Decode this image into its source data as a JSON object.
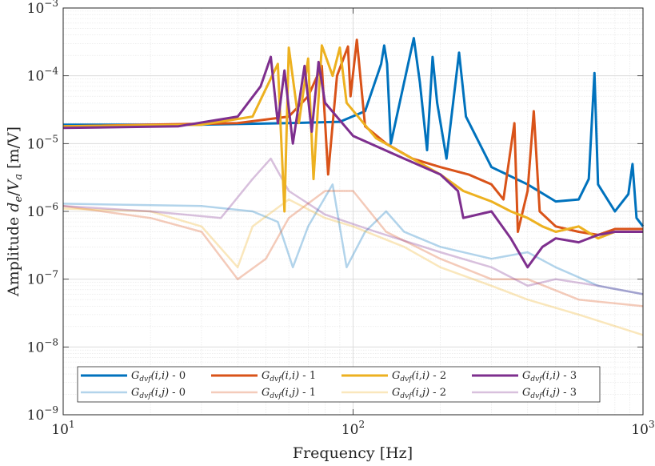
{
  "chart_data": {
    "type": "line",
    "xlabel": "Frequency [Hz]",
    "ylabel": "Amplitude d_e/V_a [m/V]",
    "xscale": "log",
    "yscale": "log",
    "xlim": [
      10,
      1000
    ],
    "ylim": [
      1e-09,
      0.001
    ],
    "grid": true,
    "legend_placement": "bottom-center",
    "x_ticks": [
      {
        "value": 10,
        "base": "10",
        "exp": "1"
      },
      {
        "value": 100,
        "base": "10",
        "exp": "2"
      },
      {
        "value": 1000,
        "base": "10",
        "exp": "3"
      }
    ],
    "y_ticks": [
      {
        "value": 1e-09,
        "base": "10",
        "exp": "−9"
      },
      {
        "value": 1e-08,
        "base": "10",
        "exp": "−8"
      },
      {
        "value": 1e-07,
        "base": "10",
        "exp": "−7"
      },
      {
        "value": 1e-06,
        "base": "10",
        "exp": "−6"
      },
      {
        "value": 1e-05,
        "base": "10",
        "exp": "−5"
      },
      {
        "value": 0.0001,
        "base": "10",
        "exp": "−4"
      },
      {
        "value": 0.001,
        "base": "10",
        "exp": "−3"
      }
    ],
    "series": [
      {
        "name": "G_dvf(i,i) - 0",
        "kind": "diagonal",
        "color": "#0072BD",
        "points": [
          [
            10,
            1.9e-05
          ],
          [
            30,
            1.9e-05
          ],
          [
            60,
            2e-05
          ],
          [
            90,
            2.1e-05
          ],
          [
            110,
            3e-05
          ],
          [
            125,
            0.00015
          ],
          [
            128,
            0.00028
          ],
          [
            131,
            0.00015
          ],
          [
            135,
            1e-05
          ],
          [
            150,
            8e-05
          ],
          [
            162,
            0.00036
          ],
          [
            170,
            8e-05
          ],
          [
            180,
            8e-06
          ],
          [
            188,
            0.00019
          ],
          [
            195,
            4e-05
          ],
          [
            210,
            6e-06
          ],
          [
            232,
            0.00022
          ],
          [
            245,
            2.5e-05
          ],
          [
            300,
            4.5e-06
          ],
          [
            400,
            2.5e-06
          ],
          [
            500,
            1.4e-06
          ],
          [
            600,
            1.5e-06
          ],
          [
            650,
            3e-06
          ],
          [
            680,
            0.00011
          ],
          [
            700,
            2.5e-06
          ],
          [
            800,
            1e-06
          ],
          [
            890,
            1.8e-06
          ],
          [
            920,
            5e-06
          ],
          [
            950,
            8e-07
          ],
          [
            1000,
            6e-07
          ]
        ]
      },
      {
        "name": "G_dvf(i,i) - 1",
        "kind": "diagonal",
        "color": "#D95319",
        "points": [
          [
            10,
            1.8e-05
          ],
          [
            40,
            2e-05
          ],
          [
            60,
            2.5e-05
          ],
          [
            70,
            5e-05
          ],
          [
            78,
            0.00014
          ],
          [
            82,
            3.5e-06
          ],
          [
            88,
            0.0001
          ],
          [
            96,
            0.00027
          ],
          [
            98,
            5e-05
          ],
          [
            103,
            0.00034
          ],
          [
            110,
            1.8e-05
          ],
          [
            130,
            1e-05
          ],
          [
            160,
            6e-06
          ],
          [
            200,
            4.5e-06
          ],
          [
            250,
            3.5e-06
          ],
          [
            300,
            2.5e-06
          ],
          [
            330,
            1.5e-06
          ],
          [
            360,
            2e-05
          ],
          [
            370,
            5e-07
          ],
          [
            400,
            2e-06
          ],
          [
            420,
            3e-05
          ],
          [
            440,
            1e-06
          ],
          [
            500,
            6e-07
          ],
          [
            600,
            5e-07
          ],
          [
            700,
            4.5e-07
          ],
          [
            800,
            5.5e-07
          ],
          [
            1000,
            5.5e-07
          ]
        ]
      },
      {
        "name": "G_dvf(i,i) - 2",
        "kind": "diagonal",
        "color": "#EDB120",
        "points": [
          [
            10,
            1.8e-05
          ],
          [
            30,
            1.9e-05
          ],
          [
            45,
            2.5e-05
          ],
          [
            55,
            0.00015
          ],
          [
            58,
            1e-06
          ],
          [
            60,
            0.00026
          ],
          [
            65,
            2e-05
          ],
          [
            70,
            0.00018
          ],
          [
            73,
            3e-06
          ],
          [
            78,
            0.00028
          ],
          [
            85,
            0.0001
          ],
          [
            90,
            0.00026
          ],
          [
            95,
            4e-05
          ],
          [
            120,
            1.2e-05
          ],
          [
            160,
            6e-06
          ],
          [
            200,
            3.5e-06
          ],
          [
            240,
            2e-06
          ],
          [
            300,
            1.4e-06
          ],
          [
            350,
            1e-06
          ],
          [
            400,
            8e-07
          ],
          [
            450,
            6e-07
          ],
          [
            500,
            5e-07
          ],
          [
            600,
            6e-07
          ],
          [
            700,
            4e-07
          ],
          [
            800,
            5e-07
          ],
          [
            1000,
            5e-07
          ]
        ]
      },
      {
        "name": "G_dvf(i,i) - 3",
        "kind": "diagonal",
        "color": "#7E2F8E",
        "points": [
          [
            10,
            1.7e-05
          ],
          [
            25,
            1.8e-05
          ],
          [
            40,
            2.5e-05
          ],
          [
            48,
            7e-05
          ],
          [
            52,
            0.00019
          ],
          [
            55,
            2e-05
          ],
          [
            58,
            0.00012
          ],
          [
            62,
            1e-05
          ],
          [
            68,
            0.00014
          ],
          [
            72,
            1.5e-05
          ],
          [
            76,
            0.00016
          ],
          [
            80,
            4e-05
          ],
          [
            100,
            1.3e-05
          ],
          [
            150,
            6e-06
          ],
          [
            200,
            3.5e-06
          ],
          [
            230,
            2e-06
          ],
          [
            240,
            8e-07
          ],
          [
            300,
            1e-06
          ],
          [
            350,
            4e-07
          ],
          [
            400,
            1.5e-07
          ],
          [
            450,
            3e-07
          ],
          [
            500,
            4e-07
          ],
          [
            600,
            3.5e-07
          ],
          [
            700,
            4.5e-07
          ],
          [
            800,
            5e-07
          ],
          [
            1000,
            5e-07
          ]
        ]
      },
      {
        "name": "G_dvf(i,j) - 0",
        "kind": "coupling",
        "color": "#0072BD",
        "points": [
          [
            10,
            1.3e-06
          ],
          [
            30,
            1.2e-06
          ],
          [
            45,
            1e-06
          ],
          [
            55,
            7e-07
          ],
          [
            62,
            1.5e-07
          ],
          [
            70,
            6e-07
          ],
          [
            85,
            2.5e-06
          ],
          [
            95,
            1.5e-07
          ],
          [
            110,
            5e-07
          ],
          [
            130,
            1e-06
          ],
          [
            150,
            5e-07
          ],
          [
            200,
            3e-07
          ],
          [
            300,
            2e-07
          ],
          [
            400,
            2.5e-07
          ],
          [
            500,
            1.5e-07
          ],
          [
            700,
            8e-08
          ],
          [
            1000,
            6e-08
          ]
        ]
      },
      {
        "name": "G_dvf(i,j) - 1",
        "kind": "coupling",
        "color": "#D95319",
        "points": [
          [
            10,
            1.2e-06
          ],
          [
            20,
            8e-07
          ],
          [
            30,
            5e-07
          ],
          [
            40,
            1e-07
          ],
          [
            50,
            2e-07
          ],
          [
            60,
            8e-07
          ],
          [
            80,
            2e-06
          ],
          [
            100,
            2e-06
          ],
          [
            130,
            5e-07
          ],
          [
            200,
            2e-07
          ],
          [
            300,
            1e-07
          ],
          [
            400,
            1e-07
          ],
          [
            600,
            5e-08
          ],
          [
            1000,
            4e-08
          ]
        ]
      },
      {
        "name": "G_dvf(i,j) - 2",
        "kind": "coupling",
        "color": "#EDB120",
        "points": [
          [
            10,
            1.1e-06
          ],
          [
            20,
            1e-06
          ],
          [
            30,
            6e-07
          ],
          [
            40,
            1.5e-07
          ],
          [
            45,
            6e-07
          ],
          [
            60,
            1.5e-06
          ],
          [
            80,
            8e-07
          ],
          [
            100,
            6e-07
          ],
          [
            150,
            3e-07
          ],
          [
            200,
            1.5e-07
          ],
          [
            300,
            8e-08
          ],
          [
            400,
            5e-08
          ],
          [
            600,
            3e-08
          ],
          [
            1000,
            1.5e-08
          ]
        ]
      },
      {
        "name": "G_dvf(i,j) - 3",
        "kind": "coupling",
        "color": "#7E2F8E",
        "points": [
          [
            10,
            1.2e-06
          ],
          [
            20,
            1e-06
          ],
          [
            35,
            8e-07
          ],
          [
            45,
            3e-06
          ],
          [
            52,
            6e-06
          ],
          [
            60,
            2e-06
          ],
          [
            80,
            9e-07
          ],
          [
            120,
            5e-07
          ],
          [
            200,
            2.5e-07
          ],
          [
            300,
            1.5e-07
          ],
          [
            400,
            8e-08
          ],
          [
            500,
            1e-07
          ],
          [
            700,
            8e-08
          ],
          [
            1000,
            6e-08
          ]
        ]
      }
    ],
    "legend": [
      {
        "base": "G",
        "sub": "dvf",
        "args": "(i,i)",
        "suffix": " - 0",
        "color": "#0072BD",
        "kind": "diagonal"
      },
      {
        "base": "G",
        "sub": "dvf",
        "args": "(i,i)",
        "suffix": " - 1",
        "color": "#D95319",
        "kind": "diagonal"
      },
      {
        "base": "G",
        "sub": "dvf",
        "args": "(i,i)",
        "suffix": " - 2",
        "color": "#EDB120",
        "kind": "diagonal"
      },
      {
        "base": "G",
        "sub": "dvf",
        "args": "(i,i)",
        "suffix": " - 3",
        "color": "#7E2F8E",
        "kind": "diagonal"
      },
      {
        "base": "G",
        "sub": "dvf",
        "args": "(i,j)",
        "suffix": " - 0",
        "color": "#0072BD",
        "kind": "coupling"
      },
      {
        "base": "G",
        "sub": "dvf",
        "args": "(i,j)",
        "suffix": " - 1",
        "color": "#D95319",
        "kind": "coupling"
      },
      {
        "base": "G",
        "sub": "dvf",
        "args": "(i,j)",
        "suffix": " - 2",
        "color": "#EDB120",
        "kind": "coupling"
      },
      {
        "base": "G",
        "sub": "dvf",
        "args": "(i,j)",
        "suffix": " - 3",
        "color": "#7E2F8E",
        "kind": "coupling"
      }
    ]
  }
}
